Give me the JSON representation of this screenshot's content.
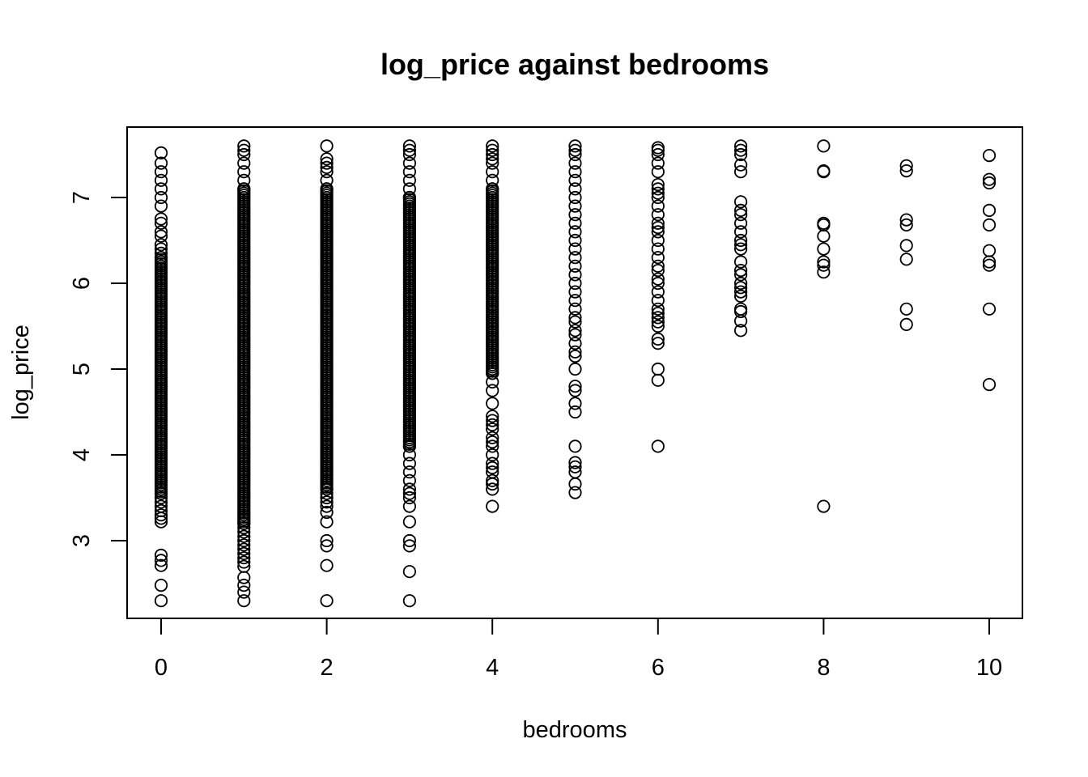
{
  "chart_data": {
    "type": "scatter",
    "title": "log_price against bedrooms",
    "xlabel": "bedrooms",
    "ylabel": "log_price",
    "xlim": [
      0,
      10
    ],
    "ylim": [
      2.3,
      7.6
    ],
    "x_ticks": [
      "0",
      "2",
      "4",
      "6",
      "8",
      "10"
    ],
    "y_ticks": [
      "3",
      "4",
      "5",
      "6",
      "7"
    ],
    "grid": false,
    "legend": "none",
    "marker": "open-circle",
    "point_color": "#000000",
    "points": [
      [
        0,
        2.3
      ],
      [
        0,
        2.48
      ],
      [
        0,
        2.71
      ],
      [
        0,
        2.77
      ],
      [
        0,
        2.83
      ],
      [
        0,
        3.22
      ],
      [
        0,
        3.26
      ],
      [
        0,
        3.3
      ],
      [
        0,
        3.35
      ],
      [
        0,
        3.4
      ],
      [
        0,
        3.45
      ],
      [
        0,
        3.5
      ],
      [
        0,
        3.55
      ],
      [
        0,
        6.3
      ],
      [
        0,
        6.35
      ],
      [
        0,
        6.4
      ],
      [
        0,
        6.45
      ],
      [
        0,
        6.55
      ],
      [
        0,
        6.6
      ],
      [
        0,
        6.7
      ],
      [
        0,
        6.75
      ],
      [
        0,
        6.9
      ],
      [
        0,
        7.0
      ],
      [
        0,
        7.1
      ],
      [
        0,
        7.2
      ],
      [
        0,
        7.3
      ],
      [
        0,
        7.4
      ],
      [
        0,
        7.52
      ],
      [
        1,
        2.3
      ],
      [
        1,
        2.4
      ],
      [
        1,
        2.48
      ],
      [
        1,
        2.57
      ],
      [
        1,
        2.7
      ],
      [
        1,
        2.75
      ],
      [
        1,
        2.8
      ],
      [
        1,
        2.85
      ],
      [
        1,
        2.9
      ],
      [
        1,
        2.95
      ],
      [
        1,
        3.0
      ],
      [
        1,
        3.05
      ],
      [
        1,
        3.1
      ],
      [
        1,
        3.15
      ],
      [
        1,
        3.2
      ],
      [
        1,
        7.1
      ],
      [
        1,
        7.2
      ],
      [
        1,
        7.3
      ],
      [
        1,
        7.4
      ],
      [
        1,
        7.5
      ],
      [
        1,
        7.55
      ],
      [
        1,
        7.6
      ],
      [
        2,
        2.3
      ],
      [
        2,
        2.71
      ],
      [
        2,
        2.94
      ],
      [
        2,
        3.0
      ],
      [
        2,
        3.22
      ],
      [
        2,
        3.33
      ],
      [
        2,
        3.4
      ],
      [
        2,
        3.45
      ],
      [
        2,
        3.5
      ],
      [
        2,
        3.55
      ],
      [
        2,
        3.6
      ],
      [
        2,
        7.1
      ],
      [
        2,
        7.2
      ],
      [
        2,
        7.3
      ],
      [
        2,
        7.35
      ],
      [
        2,
        7.4
      ],
      [
        2,
        7.45
      ],
      [
        2,
        7.6
      ],
      [
        3,
        2.3
      ],
      [
        3,
        2.64
      ],
      [
        3,
        2.94
      ],
      [
        3,
        3.0
      ],
      [
        3,
        3.22
      ],
      [
        3,
        3.4
      ],
      [
        3,
        3.5
      ],
      [
        3,
        3.55
      ],
      [
        3,
        3.6
      ],
      [
        3,
        3.7
      ],
      [
        3,
        3.8
      ],
      [
        3,
        3.9
      ],
      [
        3,
        4.0
      ],
      [
        3,
        4.1
      ],
      [
        3,
        7.0
      ],
      [
        3,
        7.1
      ],
      [
        3,
        7.2
      ],
      [
        3,
        7.3
      ],
      [
        3,
        7.4
      ],
      [
        3,
        7.5
      ],
      [
        3,
        7.55
      ],
      [
        3,
        7.6
      ],
      [
        4,
        3.4
      ],
      [
        4,
        3.6
      ],
      [
        4,
        3.66
      ],
      [
        4,
        3.7
      ],
      [
        4,
        3.8
      ],
      [
        4,
        3.85
      ],
      [
        4,
        3.9
      ],
      [
        4,
        4.0
      ],
      [
        4,
        4.1
      ],
      [
        4,
        4.15
      ],
      [
        4,
        4.2
      ],
      [
        4,
        4.3
      ],
      [
        4,
        4.35
      ],
      [
        4,
        4.4
      ],
      [
        4,
        4.45
      ],
      [
        4,
        4.6
      ],
      [
        4,
        4.75
      ],
      [
        4,
        4.85
      ],
      [
        4,
        4.95
      ],
      [
        4,
        7.1
      ],
      [
        4,
        7.2
      ],
      [
        4,
        7.3
      ],
      [
        4,
        7.4
      ],
      [
        4,
        7.45
      ],
      [
        4,
        7.5
      ],
      [
        4,
        7.55
      ],
      [
        4,
        7.6
      ],
      [
        5,
        3.56
      ],
      [
        5,
        3.66
      ],
      [
        5,
        3.8
      ],
      [
        5,
        3.86
      ],
      [
        5,
        3.91
      ],
      [
        5,
        4.1
      ],
      [
        5,
        4.5
      ],
      [
        5,
        4.6
      ],
      [
        5,
        4.75
      ],
      [
        5,
        4.8
      ],
      [
        5,
        5.0
      ],
      [
        5,
        5.15
      ],
      [
        5,
        5.2
      ],
      [
        5,
        5.3
      ],
      [
        5,
        5.4
      ],
      [
        5,
        5.45
      ],
      [
        5,
        5.55
      ],
      [
        5,
        5.6
      ],
      [
        5,
        5.7
      ],
      [
        5,
        5.8
      ],
      [
        5,
        5.9
      ],
      [
        5,
        6.0
      ],
      [
        5,
        6.1
      ],
      [
        5,
        6.2
      ],
      [
        5,
        6.3
      ],
      [
        5,
        6.4
      ],
      [
        5,
        6.5
      ],
      [
        5,
        6.6
      ],
      [
        5,
        6.7
      ],
      [
        5,
        6.8
      ],
      [
        5,
        6.9
      ],
      [
        5,
        7.0
      ],
      [
        5,
        7.1
      ],
      [
        5,
        7.2
      ],
      [
        5,
        7.3
      ],
      [
        5,
        7.4
      ],
      [
        5,
        7.5
      ],
      [
        5,
        7.55
      ],
      [
        5,
        7.6
      ],
      [
        6,
        4.1
      ],
      [
        6,
        4.87
      ],
      [
        6,
        5.0
      ],
      [
        6,
        5.3
      ],
      [
        6,
        5.35
      ],
      [
        6,
        5.5
      ],
      [
        6,
        5.55
      ],
      [
        6,
        5.6
      ],
      [
        6,
        5.65
      ],
      [
        6,
        5.7
      ],
      [
        6,
        5.8
      ],
      [
        6,
        5.9
      ],
      [
        6,
        6.0
      ],
      [
        6,
        6.05
      ],
      [
        6,
        6.15
      ],
      [
        6,
        6.2
      ],
      [
        6,
        6.3
      ],
      [
        6,
        6.4
      ],
      [
        6,
        6.5
      ],
      [
        6,
        6.6
      ],
      [
        6,
        6.65
      ],
      [
        6,
        6.7
      ],
      [
        6,
        6.8
      ],
      [
        6,
        6.9
      ],
      [
        6,
        7.0
      ],
      [
        6,
        7.05
      ],
      [
        6,
        7.1
      ],
      [
        6,
        7.15
      ],
      [
        6,
        7.3
      ],
      [
        6,
        7.4
      ],
      [
        6,
        7.5
      ],
      [
        6,
        7.55
      ],
      [
        6,
        7.58
      ],
      [
        7,
        5.45
      ],
      [
        7,
        5.56
      ],
      [
        7,
        5.67
      ],
      [
        7,
        5.7
      ],
      [
        7,
        5.85
      ],
      [
        7,
        5.9
      ],
      [
        7,
        5.95
      ],
      [
        7,
        6.0
      ],
      [
        7,
        6.1
      ],
      [
        7,
        6.15
      ],
      [
        7,
        6.25
      ],
      [
        7,
        6.4
      ],
      [
        7,
        6.45
      ],
      [
        7,
        6.5
      ],
      [
        7,
        6.6
      ],
      [
        7,
        6.7
      ],
      [
        7,
        6.8
      ],
      [
        7,
        6.85
      ],
      [
        7,
        6.95
      ],
      [
        7,
        7.3
      ],
      [
        7,
        7.38
      ],
      [
        7,
        7.5
      ],
      [
        7,
        7.55
      ],
      [
        7,
        7.6
      ],
      [
        8,
        3.4
      ],
      [
        8,
        6.13
      ],
      [
        8,
        6.21
      ],
      [
        8,
        6.25
      ],
      [
        8,
        6.4
      ],
      [
        8,
        6.55
      ],
      [
        8,
        6.68
      ],
      [
        8,
        6.7
      ],
      [
        8,
        7.3
      ],
      [
        8,
        7.31
      ],
      [
        8,
        7.6
      ],
      [
        9,
        5.52
      ],
      [
        9,
        5.7
      ],
      [
        9,
        6.28
      ],
      [
        9,
        6.44
      ],
      [
        9,
        6.68
      ],
      [
        9,
        6.74
      ],
      [
        9,
        7.31
      ],
      [
        9,
        7.37
      ],
      [
        10,
        4.82
      ],
      [
        10,
        5.7
      ],
      [
        10,
        6.21
      ],
      [
        10,
        6.25
      ],
      [
        10,
        6.38
      ],
      [
        10,
        6.68
      ],
      [
        10,
        6.85
      ],
      [
        10,
        7.17
      ],
      [
        10,
        7.21
      ],
      [
        10,
        7.49
      ]
    ],
    "dense_ranges": [
      {
        "x": 0,
        "from": 3.55,
        "to": 6.3
      },
      {
        "x": 1,
        "from": 3.2,
        "to": 7.1
      },
      {
        "x": 2,
        "from": 3.6,
        "to": 7.1
      },
      {
        "x": 3,
        "from": 4.1,
        "to": 7.0
      },
      {
        "x": 4,
        "from": 4.95,
        "to": 7.1
      }
    ]
  }
}
